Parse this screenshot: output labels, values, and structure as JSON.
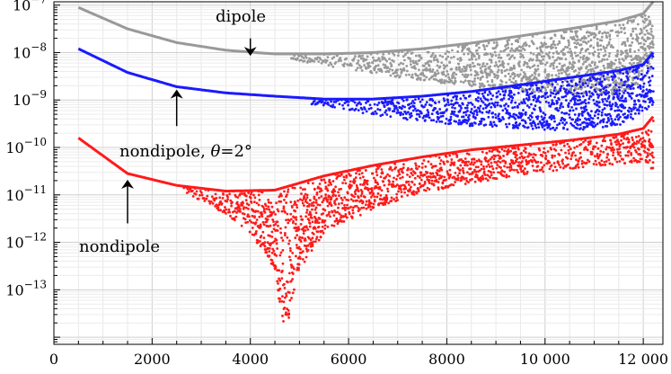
{
  "chart_data": {
    "type": "scatter",
    "title": "",
    "xlabel": "",
    "ylabel": "",
    "scale": {
      "x": "linear",
      "y": "log"
    },
    "xlim": [
      0,
      12400
    ],
    "ylim_exponent": [
      -14.15,
      -6.93
    ],
    "grid": true,
    "x_ticks": [
      0,
      2000,
      4000,
      6000,
      8000,
      10000,
      12000
    ],
    "x_tick_labels": [
      "0",
      "2000",
      "4000",
      "6000",
      "8000",
      "10 000",
      "12 000"
    ],
    "y_ticks_exponent": [
      -7,
      -8,
      -9,
      -10,
      -11,
      -12,
      -13
    ],
    "y_tick_mantissa": "10",
    "colors": {
      "dipole": "#999999",
      "nondipole_theta": "#1a1aff",
      "nondipole": "#ff1a1a"
    },
    "series": [
      {
        "key": "dipole",
        "color": "#999999",
        "upper_envelope_log10": [
          [
            500,
            -7.05
          ],
          [
            1500,
            -7.5
          ],
          [
            2500,
            -7.79
          ],
          [
            3500,
            -7.95
          ],
          [
            4500,
            -8.03
          ],
          [
            5500,
            -8.03
          ],
          [
            6500,
            -8.0
          ],
          [
            7500,
            -7.92
          ],
          [
            8500,
            -7.8
          ],
          [
            9500,
            -7.65
          ],
          [
            10500,
            -7.5
          ],
          [
            11500,
            -7.33
          ],
          [
            12000,
            -7.18
          ],
          [
            12200,
            -6.93
          ]
        ],
        "lower_envelope_log10": [
          [
            500,
            -7.05
          ],
          [
            1500,
            -7.5
          ],
          [
            2500,
            -7.8
          ],
          [
            3500,
            -7.97
          ],
          [
            4500,
            -8.1
          ],
          [
            5500,
            -8.27
          ],
          [
            6500,
            -8.44
          ],
          [
            7500,
            -8.6
          ],
          [
            8500,
            -8.72
          ],
          [
            9500,
            -8.82
          ],
          [
            10500,
            -8.88
          ],
          [
            11500,
            -8.9
          ],
          [
            12000,
            -8.6
          ],
          [
            12200,
            -8.3
          ]
        ]
      },
      {
        "key": "nondipole_theta",
        "color": "#1a1aff",
        "upper_envelope_log10": [
          [
            500,
            -7.92
          ],
          [
            1500,
            -8.42
          ],
          [
            2500,
            -8.72
          ],
          [
            3500,
            -8.85
          ],
          [
            4500,
            -8.92
          ],
          [
            5500,
            -8.98
          ],
          [
            6500,
            -8.98
          ],
          [
            7500,
            -8.92
          ],
          [
            8500,
            -8.82
          ],
          [
            9500,
            -8.68
          ],
          [
            10500,
            -8.53
          ],
          [
            11500,
            -8.38
          ],
          [
            12000,
            -8.25
          ],
          [
            12200,
            -8.0
          ]
        ],
        "lower_envelope_log10": [
          [
            500,
            -7.92
          ],
          [
            1500,
            -8.42
          ],
          [
            2500,
            -8.72
          ],
          [
            3500,
            -8.87
          ],
          [
            4500,
            -9.0
          ],
          [
            5500,
            -9.12
          ],
          [
            6500,
            -9.32
          ],
          [
            7500,
            -9.45
          ],
          [
            8500,
            -9.55
          ],
          [
            9500,
            -9.6
          ],
          [
            10500,
            -9.65
          ],
          [
            11500,
            -9.55
          ],
          [
            12000,
            -9.3
          ],
          [
            12200,
            -9.1
          ]
        ]
      },
      {
        "key": "nondipole",
        "color": "#ff1a1a",
        "upper_envelope_log10": [
          [
            500,
            -9.8
          ],
          [
            1500,
            -10.55
          ],
          [
            2500,
            -10.8
          ],
          [
            3500,
            -10.92
          ],
          [
            4500,
            -10.9
          ],
          [
            5500,
            -10.6
          ],
          [
            6500,
            -10.38
          ],
          [
            7500,
            -10.2
          ],
          [
            8500,
            -10.05
          ],
          [
            9500,
            -9.95
          ],
          [
            10500,
            -9.85
          ],
          [
            11500,
            -9.72
          ],
          [
            12000,
            -9.6
          ],
          [
            12200,
            -9.35
          ]
        ],
        "lower_envelope_log10": [
          [
            500,
            -9.8
          ],
          [
            1500,
            -10.55
          ],
          [
            2500,
            -10.88
          ],
          [
            3000,
            -11.12
          ],
          [
            3500,
            -11.4
          ],
          [
            4000,
            -11.8
          ],
          [
            4500,
            -12.6
          ],
          [
            4700,
            -14.0
          ],
          [
            5000,
            -12.6
          ],
          [
            5500,
            -11.8
          ],
          [
            6500,
            -11.3
          ],
          [
            7500,
            -10.95
          ],
          [
            8500,
            -10.75
          ],
          [
            9500,
            -10.58
          ],
          [
            10500,
            -10.45
          ],
          [
            11500,
            -10.35
          ],
          [
            12000,
            -10.3
          ],
          [
            12200,
            -10.5
          ]
        ]
      }
    ],
    "annotations": [
      {
        "text": "dipole",
        "arrow_from": [
          4000,
          -7.7
        ],
        "arrow_to": [
          4000,
          -8.05
        ]
      },
      {
        "text_prefix": "nondipole, ",
        "text_var": "θ",
        "text_suffix": "=2°",
        "arrow_from": [
          2500,
          -9.55
        ],
        "arrow_to": [
          2500,
          -8.8
        ]
      },
      {
        "text": "nondipole",
        "arrow_from": [
          1500,
          -11.6
        ],
        "arrow_to": [
          1500,
          -10.7
        ]
      }
    ]
  }
}
